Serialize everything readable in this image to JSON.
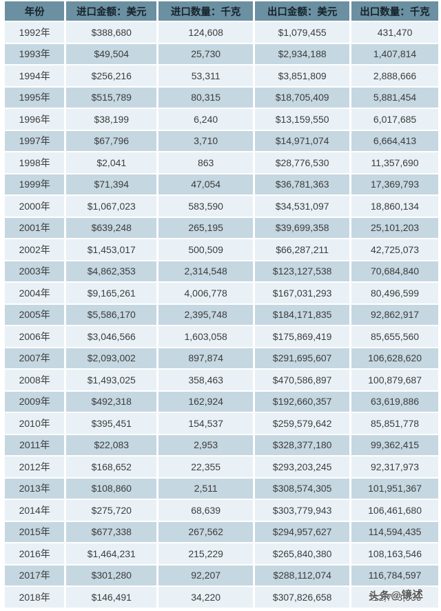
{
  "chart_data": {
    "type": "table",
    "columns": [
      "年份",
      "进口金额：美元",
      "进口数量：千克",
      "出口金额：美元",
      "出口数量：千克"
    ],
    "rows": [
      [
        "1992年",
        "$388,680",
        "124,608",
        "$1,079,455",
        "431,470"
      ],
      [
        "1993年",
        "$49,504",
        "25,730",
        "$2,934,188",
        "1,407,814"
      ],
      [
        "1994年",
        "$256,216",
        "53,311",
        "$3,851,809",
        "2,888,666"
      ],
      [
        "1995年",
        "$515,789",
        "80,315",
        "$18,705,409",
        "5,881,454"
      ],
      [
        "1996年",
        "$38,199",
        "6,240",
        "$13,159,550",
        "6,017,685"
      ],
      [
        "1997年",
        "$67,796",
        "3,710",
        "$14,971,074",
        "6,664,413"
      ],
      [
        "1998年",
        "$2,041",
        "863",
        "$28,776,530",
        "11,357,690"
      ],
      [
        "1999年",
        "$71,394",
        "47,054",
        "$36,781,363",
        "17,369,793"
      ],
      [
        "2000年",
        "$1,067,023",
        "583,590",
        "$34,531,097",
        "18,860,134"
      ],
      [
        "2001年",
        "$639,248",
        "265,195",
        "$39,699,358",
        "25,101,203"
      ],
      [
        "2002年",
        "$1,453,017",
        "500,509",
        "$66,287,211",
        "42,725,073"
      ],
      [
        "2003年",
        "$4,862,353",
        "2,314,548",
        "$123,127,538",
        "70,684,840"
      ],
      [
        "2004年",
        "$9,165,261",
        "4,006,778",
        "$167,031,293",
        "80,496,599"
      ],
      [
        "2005年",
        "$5,586,170",
        "2,395,748",
        "$184,171,835",
        "92,862,917"
      ],
      [
        "2006年",
        "$3,046,566",
        "1,603,058",
        "$175,869,419",
        "85,655,560"
      ],
      [
        "2007年",
        "$2,093,002",
        "897,874",
        "$291,695,607",
        "106,628,620"
      ],
      [
        "2008年",
        "$1,493,025",
        "358,463",
        "$470,586,897",
        "100,879,687"
      ],
      [
        "2009年",
        "$492,318",
        "162,924",
        "$192,660,357",
        "63,619,886"
      ],
      [
        "2010年",
        "$395,451",
        "154,537",
        "$259,579,642",
        "85,851,778"
      ],
      [
        "2011年",
        "$22,083",
        "2,953",
        "$328,377,180",
        "99,362,415"
      ],
      [
        "2012年",
        "$168,652",
        "22,355",
        "$293,203,245",
        "92,317,973"
      ],
      [
        "2013年",
        "$108,860",
        "2,511",
        "$308,574,305",
        "101,951,367"
      ],
      [
        "2014年",
        "$275,720",
        "68,639",
        "$303,779,943",
        "106,461,680"
      ],
      [
        "2015年",
        "$677,338",
        "267,562",
        "$294,957,627",
        "114,594,435"
      ],
      [
        "2016年",
        "$1,464,231",
        "215,229",
        "$265,840,380",
        "108,163,546"
      ],
      [
        "2017年",
        "$301,280",
        "92,207",
        "$288,112,074",
        "116,784,597"
      ],
      [
        "2018年",
        "$146,491",
        "34,220",
        "$307,826,658",
        "112,703,936"
      ]
    ]
  },
  "watermark": {
    "text": "头条@镜述"
  },
  "colors": {
    "header_bg": "#6b90a1",
    "header_text": "#15222b",
    "row_light": "#e9f1f6",
    "row_dark": "#c5d7e1",
    "body_text": "#3c3c3c",
    "separator": "#ffffff",
    "watermark_color": "#4a4a4a"
  }
}
